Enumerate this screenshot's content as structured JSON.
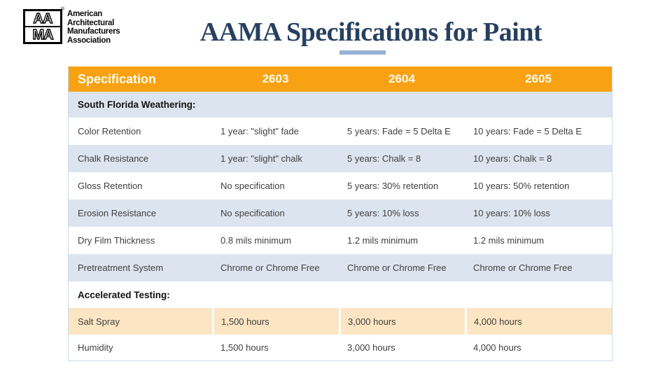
{
  "slide": {
    "title": "AAMA Specifications for Paint"
  },
  "logo": {
    "square_top": "AA",
    "square_bottom": "MA",
    "registered": "®",
    "org_lines": [
      "American",
      "Architectural",
      "Manufacturers",
      "Association"
    ]
  },
  "colors": {
    "header_orange": "#F8A213",
    "row_blue": "#DCE4EF",
    "highlight_peach": "#FCE5C2",
    "title_navy": "#27405F",
    "underline_blue": "#96B1D6",
    "header_text": "#FFFCEB",
    "body_text": "#3F3F3F"
  },
  "table": {
    "header": {
      "label": "Specification",
      "c1": "2603",
      "c2": "2604",
      "c3": "2605"
    },
    "rows": [
      {
        "type": "section",
        "label": "South Florida Weathering:"
      },
      {
        "type": "data",
        "label": "Color Retention",
        "v1": "1 year: \"slight\" fade",
        "v2": "5 years: Fade = 5 Delta E",
        "v3": "10 years: Fade = 5 Delta E"
      },
      {
        "type": "data",
        "label": "Chalk Resistance",
        "v1": "1 year: \"slight\" chalk",
        "v2": "5 years: Chalk = 8",
        "v3": "10 years: Chalk = 8"
      },
      {
        "type": "data",
        "label": "Gloss Retention",
        "v1": "No specification",
        "v2": "5 years: 30% retention",
        "v3": "10 years: 50% retention"
      },
      {
        "type": "data",
        "label": "Erosion Resistance",
        "v1": "No specification",
        "v2": "5 years: 10% loss",
        "v3": "10 years: 10% loss"
      },
      {
        "type": "data",
        "label": "Dry Film Thickness",
        "v1": "0.8 mils minimum",
        "v2": "1.2 mils minimum",
        "v3": "1.2 mils minimum"
      },
      {
        "type": "data",
        "label": "Pretreatment System",
        "v1": "Chrome or Chrome Free",
        "v2": "Chrome or Chrome Free",
        "v3": "Chrome or Chrome Free"
      },
      {
        "type": "section",
        "label": "Accelerated Testing:"
      },
      {
        "type": "data",
        "label": "Salt Spray",
        "v1": "1,500 hours",
        "v2": "3,000 hours",
        "v3": "4,000 hours"
      },
      {
        "type": "data",
        "label": "Humidity",
        "v1": "1,500 hours",
        "v2": "3,000 hours",
        "v3": "4,000 hours"
      }
    ]
  }
}
